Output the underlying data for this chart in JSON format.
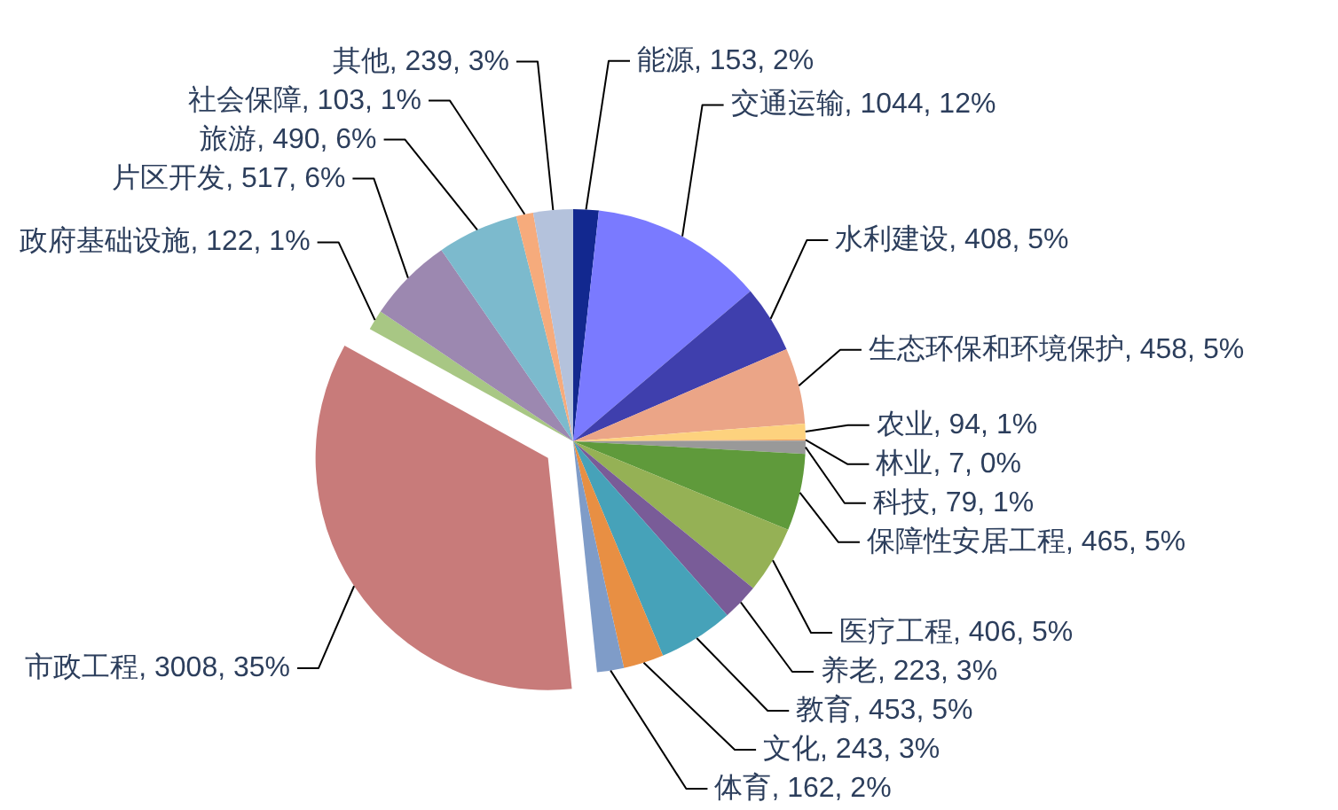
{
  "chart_data": {
    "type": "pie",
    "categories": [
      "能源",
      "交通运输",
      "水利建设",
      "生态环保和环境保护",
      "农业",
      "林业",
      "科技",
      "保障性安居工程",
      "医疗工程",
      "养老",
      "教育",
      "文化",
      "体育",
      "市政工程",
      "政府基础设施",
      "片区开发",
      "旅游",
      "社会保障",
      "其他"
    ],
    "values": [
      153,
      1044,
      408,
      458,
      94,
      7,
      79,
      465,
      406,
      223,
      453,
      243,
      162,
      3008,
      122,
      517,
      490,
      103,
      239
    ],
    "colors": [
      "#12288f",
      "#7a7aff",
      "#3f3fad",
      "#eba587",
      "#fdd27e",
      "#f0a060",
      "#999999",
      "#5f9a3b",
      "#95b155",
      "#795c98",
      "#46a2b9",
      "#e88f43",
      "#7f9cc8",
      "#c87b7a",
      "#a8c784",
      "#9c88b0",
      "#7cbacd",
      "#f6ab7c",
      "#b4c2dc"
    ],
    "value_labels": [
      "153, 2%",
      "1044, 12%",
      "408, 5%",
      "458, 5%",
      "94, 1%",
      "7, 0%",
      "79, 1%",
      "465, 5%",
      "406, 5%",
      "223, 3%",
      "453, 5%",
      "243, 3%",
      "162, 2%",
      "3008, 35%",
      "122, 1%",
      "517, 6%",
      "490, 6%",
      "103, 1%",
      "239, 3%"
    ]
  }
}
